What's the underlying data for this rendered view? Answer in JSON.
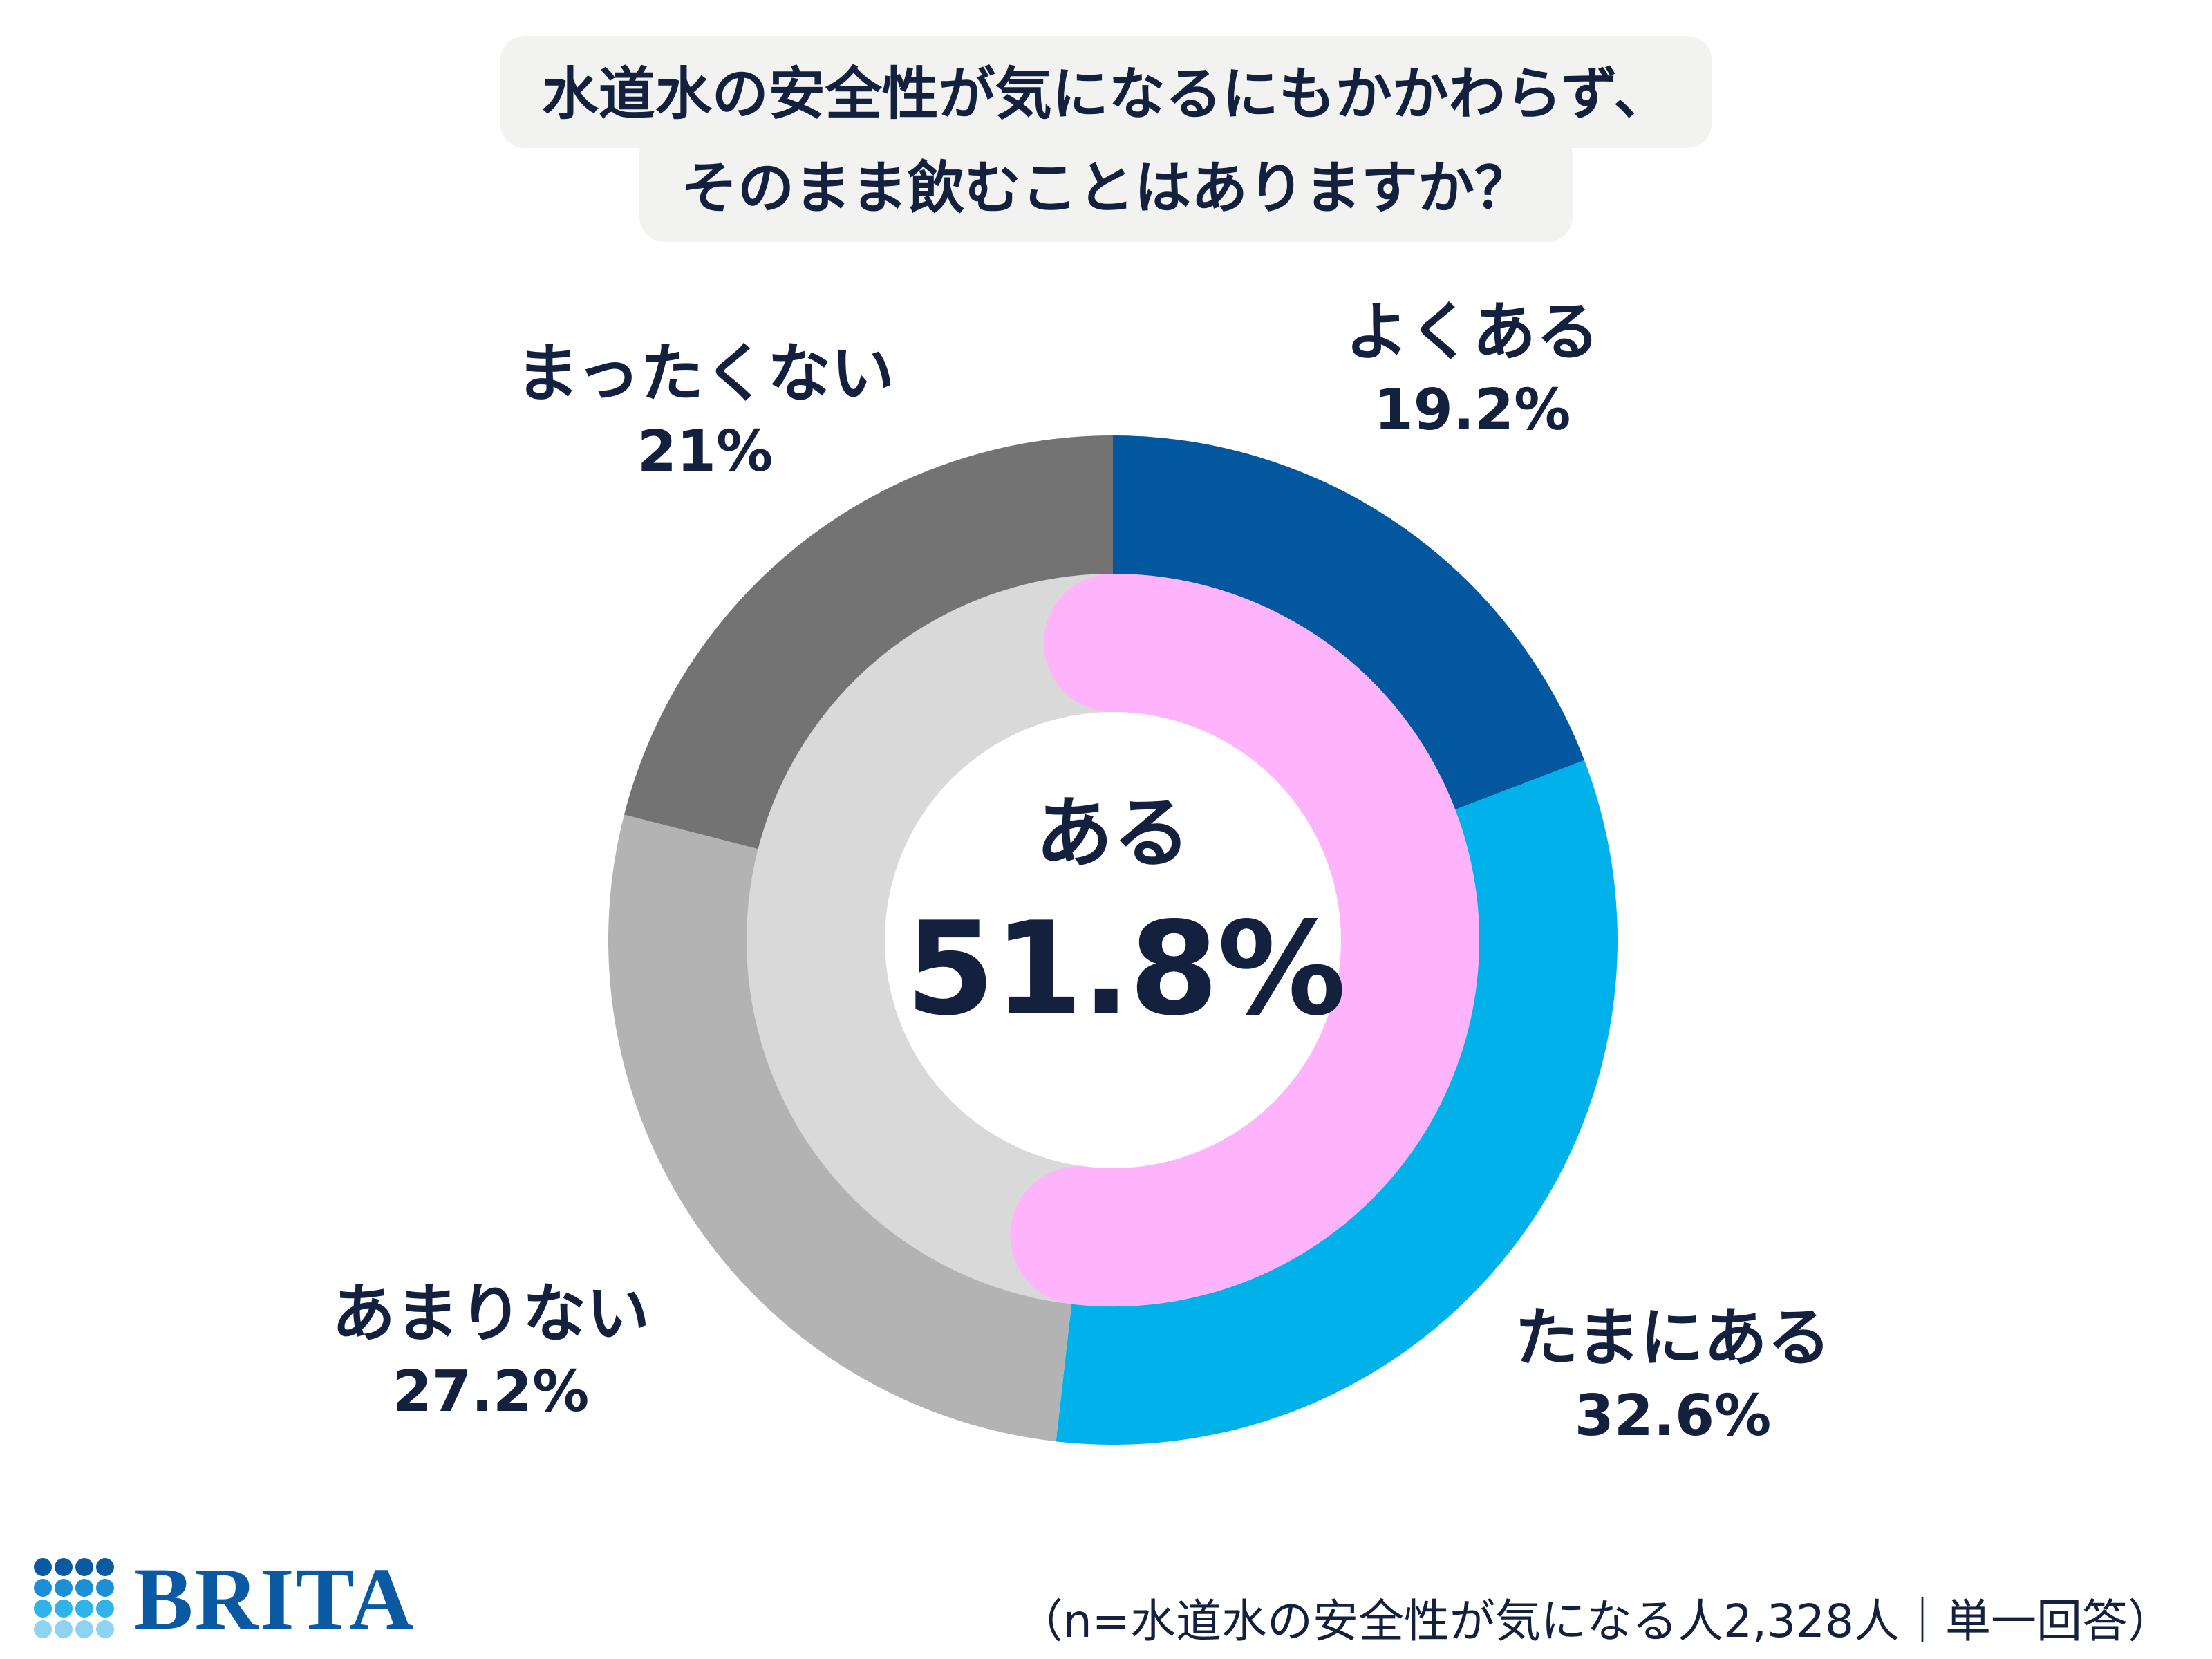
{
  "title": {
    "line1": "水道水の安全性が気になるにもかかわらず、",
    "line2": "そのまま飲むことはありますか？"
  },
  "chart_data": {
    "type": "pie",
    "style": "donut",
    "outer_ring": [
      {
        "label": "よくある",
        "value": 19.2,
        "display": "19.2%",
        "color": "#02579e"
      },
      {
        "label": "たまにある",
        "value": 32.6,
        "display": "32.6%",
        "color": "#00b1ea"
      },
      {
        "label": "あまりない",
        "value": 27.2,
        "display": "27.2%",
        "color": "#b3b3b3"
      },
      {
        "label": "まったくない",
        "value": 21,
        "display": "21%",
        "color": "#737373"
      }
    ],
    "inner_ring": {
      "highlight_label": "ある",
      "highlight_value": 51.8,
      "highlight_color": "#ffb3fa",
      "track_color": "#d9d9d9"
    },
    "center_label": "ある",
    "center_value": "51.8%"
  },
  "logo": {
    "text": "BRITA",
    "icon": "brita-dots-icon"
  },
  "footnote": "（n=水道水の安全性が気になる人2,328人｜単一回答）"
}
